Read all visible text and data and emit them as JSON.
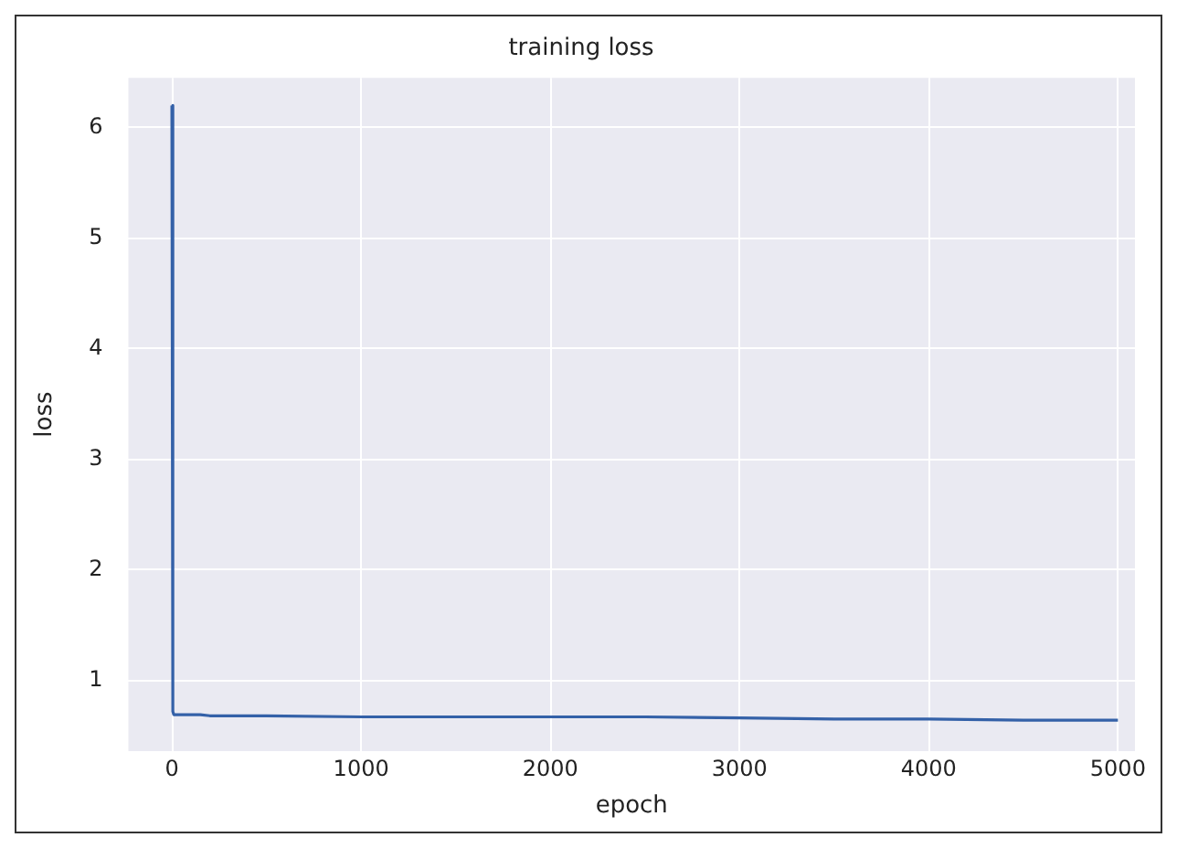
{
  "chart_data": {
    "type": "line",
    "title": "training loss",
    "xlabel": "epoch",
    "ylabel": "loss",
    "x": [
      0,
      5,
      10,
      50,
      100,
      150,
      200,
      300,
      500,
      1000,
      1500,
      2000,
      2500,
      3000,
      3500,
      4000,
      4500,
      5000
    ],
    "series": [
      {
        "color": "#3461a8",
        "values": [
          6.2,
          0.72,
          0.69,
          0.69,
          0.69,
          0.69,
          0.68,
          0.68,
          0.68,
          0.67,
          0.67,
          0.67,
          0.67,
          0.66,
          0.65,
          0.65,
          0.64,
          0.64
        ]
      }
    ],
    "xlim": [
      -230,
      5090
    ],
    "ylim": [
      0.36,
      6.45
    ],
    "xticks": [
      0,
      1000,
      2000,
      3000,
      4000,
      5000
    ],
    "yticks": [
      1,
      2,
      3,
      4,
      5,
      6
    ],
    "grid": true,
    "legend": false,
    "marker": "none",
    "line_style": "solid"
  }
}
